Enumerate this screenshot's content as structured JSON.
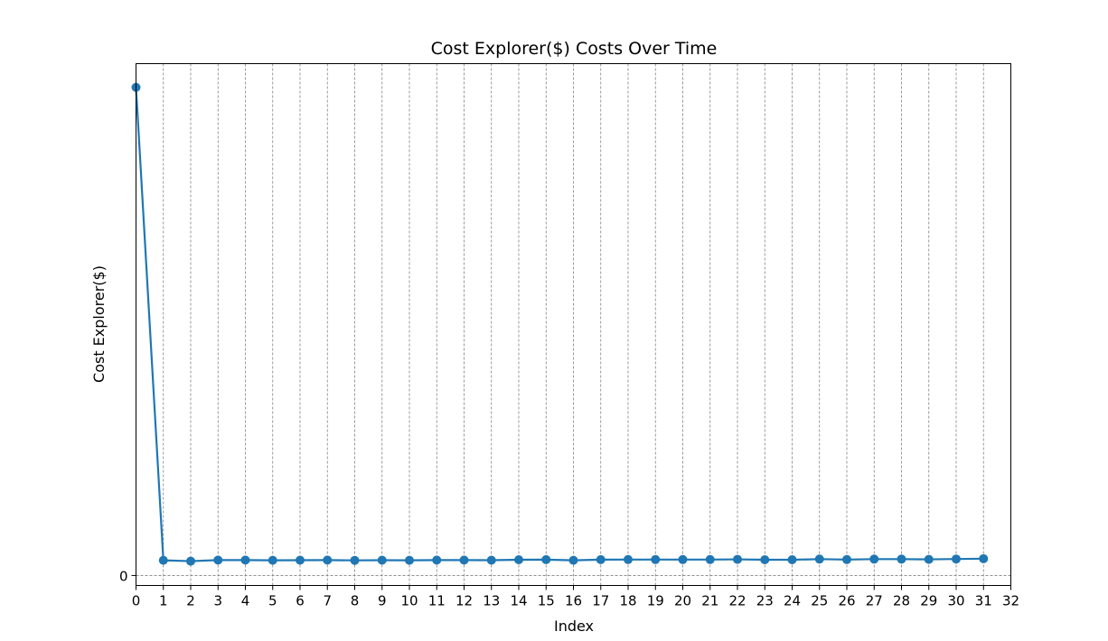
{
  "chart_data": {
    "type": "line",
    "title": "Cost Explorer($) Costs Over Time",
    "xlabel": "Index",
    "ylabel": "Cost Explorer($)",
    "x": [
      0,
      1,
      2,
      3,
      4,
      5,
      6,
      7,
      8,
      9,
      10,
      11,
      12,
      13,
      14,
      15,
      16,
      17,
      18,
      19,
      20,
      21,
      22,
      23,
      24,
      25,
      26,
      27,
      28,
      29,
      30,
      31
    ],
    "series": [
      {
        "values": [
          1.0,
          0.0311,
          0.0293,
          0.0315,
          0.0315,
          0.0311,
          0.0313,
          0.0315,
          0.0309,
          0.0313,
          0.0311,
          0.0315,
          0.0315,
          0.0313,
          0.0322,
          0.0324,
          0.0311,
          0.0324,
          0.0326,
          0.0326,
          0.0326,
          0.0326,
          0.033,
          0.0322,
          0.0322,
          0.0335,
          0.0326,
          0.0335,
          0.0335,
          0.033,
          0.0337,
          0.0344
        ],
        "color": "#1f77b4"
      }
    ],
    "xlim": [
      0,
      32
    ],
    "ylim": [
      -0.0205,
      1.0485
    ],
    "xticks": [
      "0",
      "1",
      "2",
      "3",
      "4",
      "5",
      "6",
      "7",
      "8",
      "9",
      "10",
      "11",
      "12",
      "13",
      "14",
      "15",
      "16",
      "17",
      "18",
      "19",
      "20",
      "21",
      "22",
      "23",
      "24",
      "25",
      "26",
      "27",
      "28",
      "29",
      "30",
      "31",
      "32"
    ],
    "yticks": [
      {
        "value": 0,
        "label": "0"
      }
    ],
    "grid": "x-major dashed gray, y=0 dashed gray",
    "marker": "circle"
  }
}
